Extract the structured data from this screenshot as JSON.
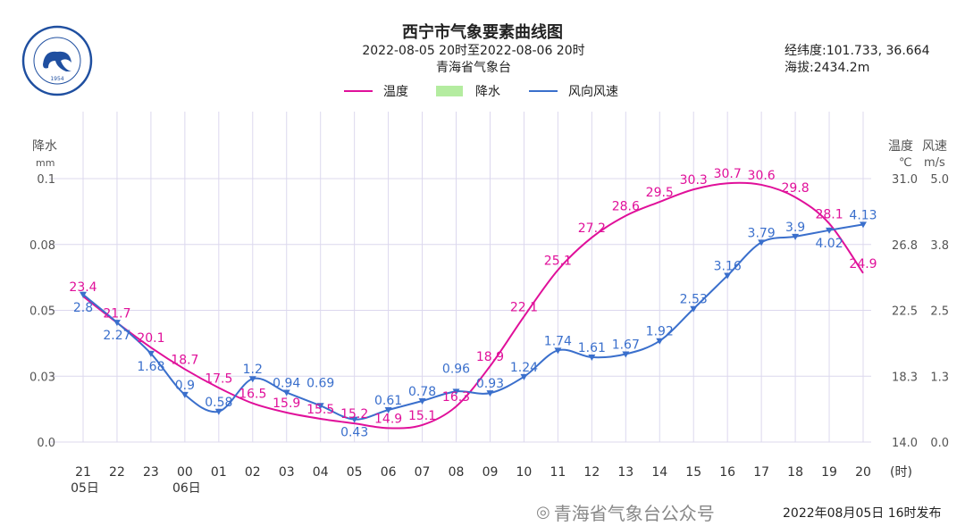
{
  "header": {
    "title": "西宁市气象要素曲线图",
    "period": "2022-08-05 20时至2022-08-06 20时",
    "org": "青海省气象台",
    "coords": "经纬度:101.733, 36.664",
    "altitude": "海拔:2434.2m",
    "logo_text": "青海省气象台 QING HAI METEOROLOGICAL OBSERVATORY 1954"
  },
  "footer": {
    "published": "2022年08月05日 16时发布",
    "watermark": "青海省气象台公众号"
  },
  "colors": {
    "temp": "#e0109a",
    "precip": "#b4eca0",
    "wind": "#3a6fcc",
    "grid": "#dcd8ee"
  },
  "chart_data": {
    "type": "line",
    "title": "西宁市气象要素曲线图",
    "legend": [
      "温度",
      "降水",
      "风向风速"
    ],
    "legend_position": "top-center",
    "x": [
      "21",
      "22",
      "23",
      "00",
      "01",
      "02",
      "03",
      "04",
      "05",
      "06",
      "07",
      "08",
      "09",
      "10",
      "11",
      "12",
      "13",
      "14",
      "15",
      "16",
      "17",
      "18",
      "19",
      "20"
    ],
    "x_date_labels": {
      "0": "05日",
      "3": "06日"
    },
    "x_unit": "(时)",
    "left_axis": {
      "label": "降水",
      "unit": "mm",
      "ticks": [
        "0.0",
        "0.03",
        "0.05",
        "0.08",
        "0.1"
      ],
      "ylim": [
        0,
        0.1
      ]
    },
    "right_axis_temp": {
      "label": "温度",
      "unit": "℃",
      "ticks": [
        "14.0",
        "18.3",
        "22.5",
        "26.8",
        "31.0"
      ],
      "ylim": [
        14,
        31
      ]
    },
    "right_axis_wind": {
      "label": "风速",
      "unit": "m/s",
      "ticks": [
        "0.0",
        "1.3",
        "2.5",
        "3.8",
        "5.0"
      ],
      "ylim": [
        0,
        5
      ]
    },
    "series": [
      {
        "name": "温度",
        "values": [
          23.4,
          21.7,
          20.1,
          18.7,
          17.5,
          16.5,
          15.9,
          15.5,
          15.2,
          14.9,
          15.1,
          16.3,
          18.9,
          22.1,
          25.1,
          27.2,
          28.6,
          29.5,
          30.3,
          30.7,
          30.6,
          29.8,
          28.1,
          24.9
        ]
      },
      {
        "name": "降水",
        "values": [
          0,
          0,
          0,
          0,
          0,
          0,
          0,
          0,
          0,
          0,
          0,
          0,
          0,
          0,
          0,
          0,
          0,
          0,
          0,
          0,
          0,
          0,
          0,
          0
        ]
      },
      {
        "name": "风向风速",
        "values": [
          2.8,
          2.27,
          1.68,
          0.9,
          0.58,
          1.2,
          0.94,
          0.69,
          0.43,
          0.61,
          0.78,
          0.96,
          0.93,
          1.24,
          1.74,
          1.61,
          1.67,
          1.92,
          2.53,
          3.16,
          3.79,
          3.9,
          4.02,
          4.13
        ]
      }
    ],
    "grid": true
  }
}
